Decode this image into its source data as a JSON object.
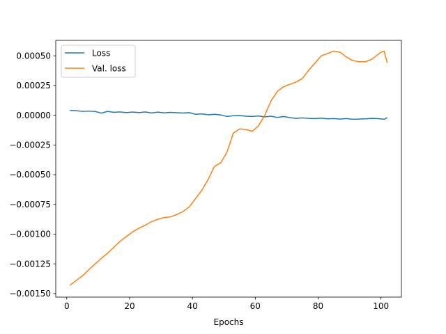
{
  "chart_data": {
    "type": "line",
    "title": "",
    "xlabel": "Epochs",
    "ylabel": "",
    "xlim": [
      -3.5,
      106.5
    ],
    "ylim": [
      -0.00153,
      0.00063
    ],
    "xticks": [
      0,
      20,
      40,
      60,
      80,
      100
    ],
    "xtick_labels": [
      "0",
      "20",
      "40",
      "60",
      "80",
      "100"
    ],
    "yticks": [
      0.0005,
      0.00025,
      0.0,
      -0.00025,
      -0.0005,
      -0.00075,
      -0.001,
      -0.00125,
      -0.0015
    ],
    "ytick_labels": [
      "0.00050",
      "0.00025",
      "0.00000",
      "−0.00025",
      "−0.00050",
      "−0.00075",
      "−0.00100",
      "−0.00125",
      "−0.00150"
    ],
    "grid": false,
    "legend_position": "upper-left",
    "series": [
      {
        "name": "Loss",
        "color": "#1f77b4",
        "x": [
          1,
          3,
          5,
          7,
          9,
          11,
          13,
          15,
          17,
          19,
          21,
          23,
          25,
          27,
          29,
          31,
          33,
          35,
          37,
          39,
          41,
          43,
          45,
          47,
          49,
          51,
          53,
          55,
          57,
          59,
          61,
          63,
          65,
          67,
          69,
          71,
          73,
          75,
          77,
          79,
          81,
          83,
          85,
          87,
          89,
          91,
          93,
          95,
          97,
          99,
          101,
          102
        ],
        "y": [
          4e-05,
          3.8e-05,
          3.3e-05,
          3.5e-05,
          3.2e-05,
          1.8e-05,
          3.2e-05,
          2.5e-05,
          2.8e-05,
          2.2e-05,
          2.7e-05,
          2.2e-05,
          2.8e-05,
          1.9e-05,
          2.6e-05,
          2e-05,
          2.4e-05,
          2.1e-05,
          1.9e-05,
          2.2e-05,
          8e-06,
          1.2e-05,
          4e-06,
          8e-06,
          2e-06,
          -1e-05,
          -4e-06,
          -2e-06,
          -8e-06,
          -1e-05,
          -6e-06,
          -1.4e-05,
          -8e-06,
          -1.8e-05,
          -1e-05,
          -2e-05,
          -2.6e-05,
          -2.2e-05,
          -2.6e-05,
          -2.8e-05,
          -2.4e-05,
          -3e-05,
          -2.8e-05,
          -3.2e-05,
          -2.8e-05,
          -3.4e-05,
          -3.2e-05,
          -3e-05,
          -2.6e-05,
          -2.8e-05,
          -3.4e-05,
          -2e-05
        ]
      },
      {
        "name": "Val. loss",
        "color": "#ff7f0e",
        "x": [
          1,
          3,
          5,
          7,
          9,
          11,
          13,
          15,
          17,
          19,
          21,
          23,
          25,
          27,
          29,
          31,
          33,
          35,
          37,
          39,
          41,
          43,
          45,
          47,
          49,
          51,
          53,
          55,
          57,
          59,
          61,
          63,
          65,
          67,
          69,
          71,
          73,
          75,
          77,
          79,
          81,
          83,
          85,
          87,
          89,
          91,
          93,
          95,
          96,
          97,
          98,
          99,
          100,
          101,
          102
        ],
        "y": [
          -0.00143,
          -0.00139,
          -0.00135,
          -0.0013,
          -0.00125,
          -0.001205,
          -0.00116,
          -0.00111,
          -0.00106,
          -0.00102,
          -0.00098,
          -0.00095,
          -0.000925,
          -0.000895,
          -0.000875,
          -0.00086,
          -0.000855,
          -0.000835,
          -0.00081,
          -0.00077,
          -0.0007,
          -0.00063,
          -0.00054,
          -0.00043,
          -0.0004,
          -0.00031,
          -0.00015,
          -0.000115,
          -0.00012,
          -0.000135,
          -9e-05,
          0.0,
          0.00012,
          0.0002,
          0.00024,
          0.00026,
          0.00028,
          0.00031,
          0.00038,
          0.00044,
          0.0005,
          0.00052,
          0.00054,
          0.00053,
          0.00049,
          0.00046,
          0.00045,
          0.00045,
          0.00046,
          0.00047,
          0.00049,
          0.00051,
          0.00053,
          0.00054,
          0.00044
        ]
      }
    ]
  }
}
